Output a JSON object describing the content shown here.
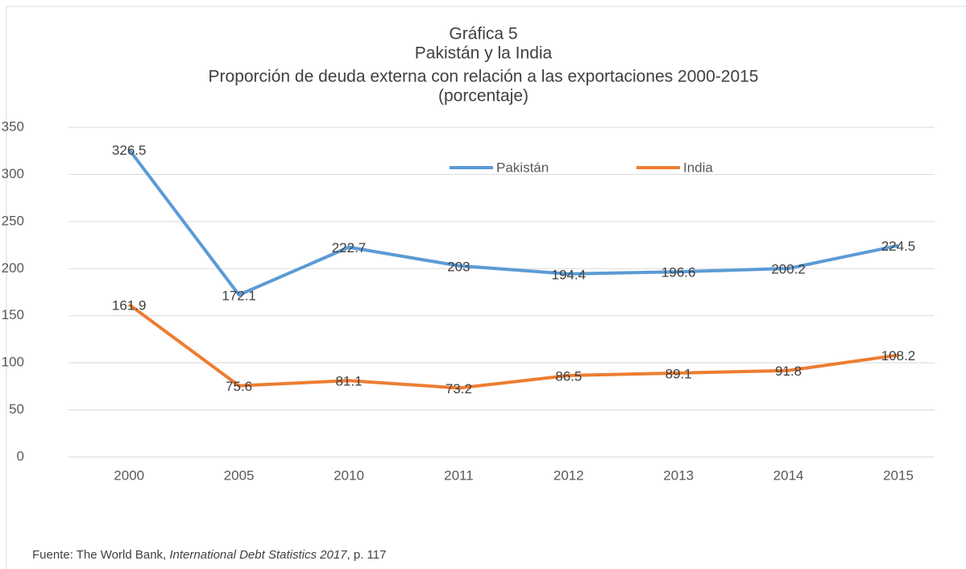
{
  "title": [
    "Gráfica 5",
    "Pakistán y la India",
    "Proporción de deuda externa con relación a las exportaciones 2000-2015",
    "(porcentaje)"
  ],
  "chart_data": {
    "type": "line",
    "categories": [
      "2000",
      "2005",
      "2010",
      "2011",
      "2012",
      "2013",
      "2014",
      "2015"
    ],
    "series": [
      {
        "name": "Pakistán",
        "color": "#5b9bd5",
        "values": [
          326.5,
          172.1,
          222.7,
          203,
          194.4,
          196.6,
          200.2,
          224.5
        ]
      },
      {
        "name": "India",
        "color": "#ed7d31",
        "values": [
          161.9,
          75.6,
          81.1,
          73.2,
          86.5,
          89.1,
          91.8,
          108.2
        ]
      }
    ],
    "ylim": [
      0,
      350
    ],
    "yticks": [
      0,
      50,
      100,
      150,
      200,
      250,
      300,
      350
    ],
    "grid": true,
    "legend": "top"
  },
  "source": [
    "Fuente: The World Bank,",
    "International Debt Statistics 2017",
    ", p. 117"
  ]
}
